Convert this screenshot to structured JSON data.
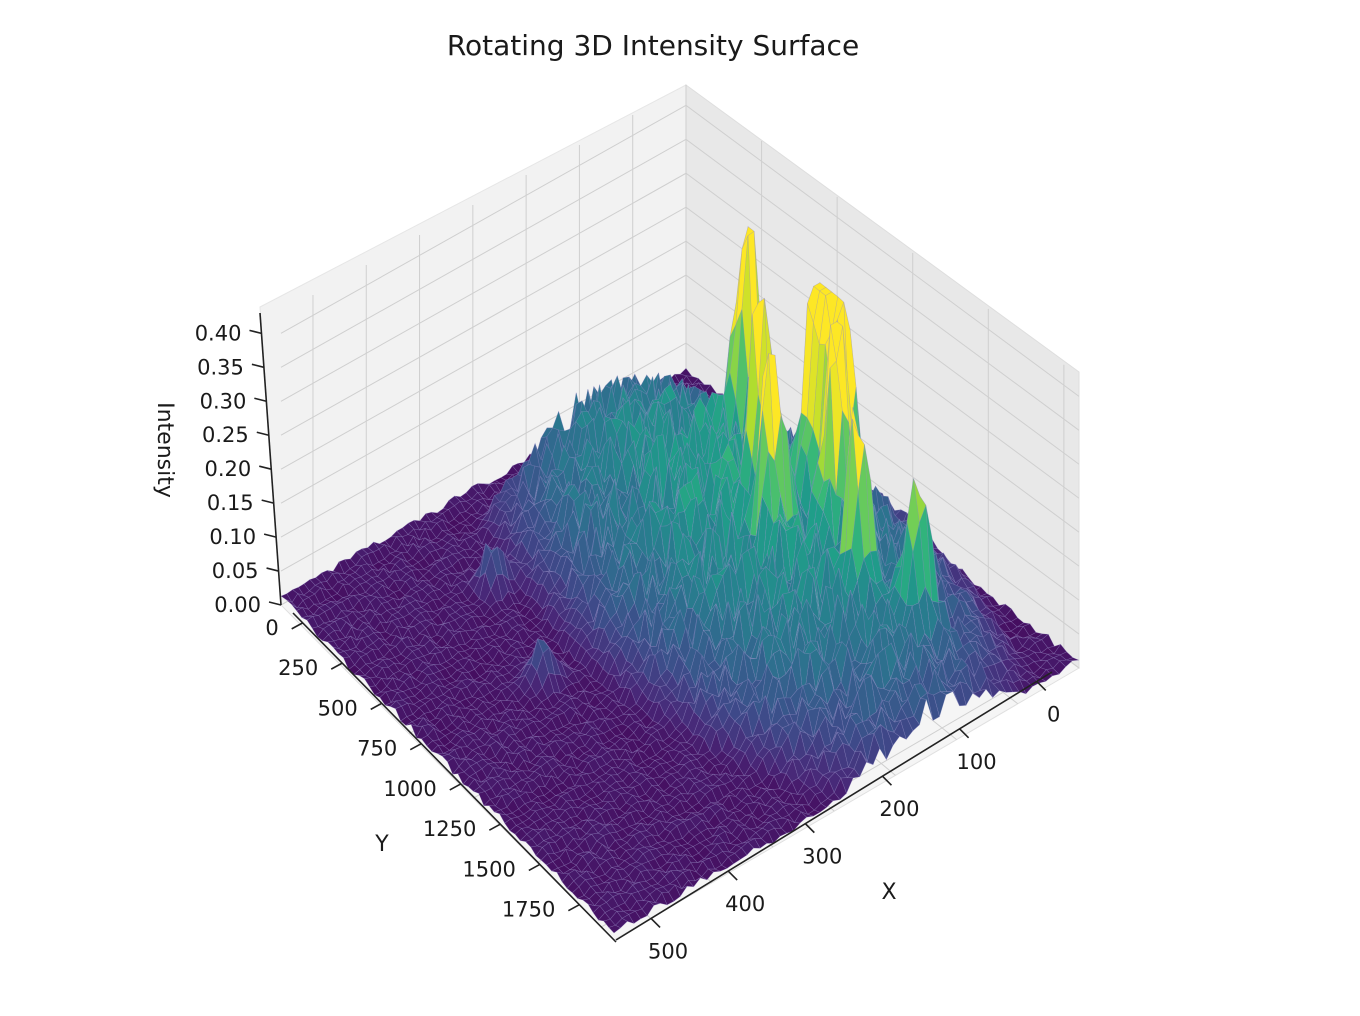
{
  "chart_data": {
    "type": "surface3d",
    "title": "Rotating 3D Intensity Surface",
    "xlabel": "X",
    "ylabel": "Y",
    "zlabel": "Intensity",
    "x_ticks": [
      0,
      100,
      200,
      300,
      400,
      500
    ],
    "y_ticks": [
      0,
      250,
      500,
      750,
      1000,
      1250,
      1500,
      1750
    ],
    "z_ticks": [
      "0.00",
      "0.05",
      "0.10",
      "0.15",
      "0.20",
      "0.25",
      "0.30",
      "0.35",
      "0.40"
    ],
    "xlim": [
      0,
      520
    ],
    "ylim": [
      0,
      1900
    ],
    "zlim": [
      0,
      0.43
    ],
    "colormap": "viridis",
    "grid": true,
    "background_region": {
      "x_min": 300,
      "z_base": 0.02
    },
    "peaks": [
      {
        "x": 280,
        "y": 350,
        "z": 0.43
      },
      {
        "x": 305,
        "y": 330,
        "z": 0.43
      },
      {
        "x": 180,
        "y": 340,
        "z": 0.38
      },
      {
        "x": 330,
        "y": 420,
        "z": 0.4
      },
      {
        "x": 255,
        "y": 510,
        "z": 0.31
      },
      {
        "x": 300,
        "y": 600,
        "z": 0.3
      },
      {
        "x": 390,
        "y": 520,
        "z": 0.28
      },
      {
        "x": 440,
        "y": 420,
        "z": 0.24
      },
      {
        "x": 110,
        "y": 1250,
        "z": 0.08
      },
      {
        "x": 230,
        "y": 1400,
        "z": 0.07
      }
    ]
  }
}
